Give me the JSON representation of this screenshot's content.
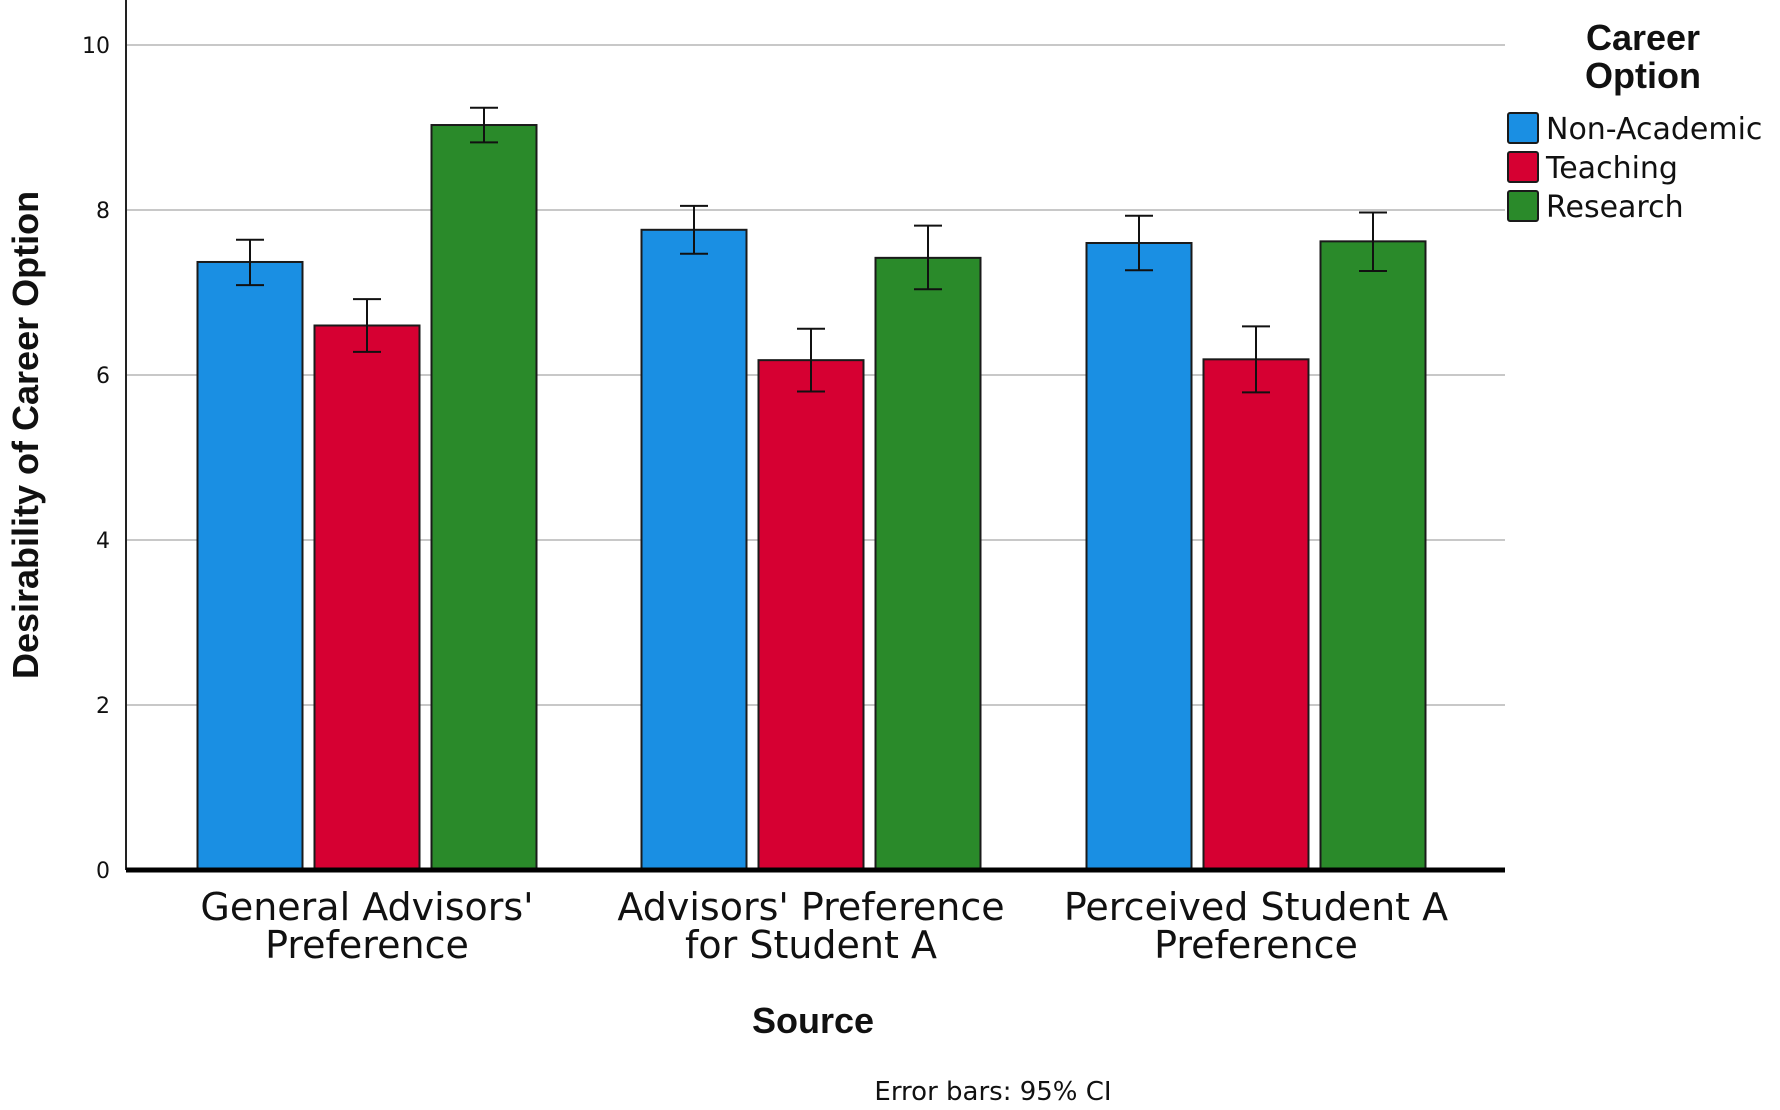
{
  "chart_data": {
    "type": "bar",
    "categories": [
      [
        "General Advisors'",
        "Preference"
      ],
      [
        "Advisors' Preference",
        "for Student A"
      ],
      [
        "Perceived Student A",
        "Preference"
      ]
    ],
    "series": [
      {
        "name": "Non-Academic",
        "color": "#1a8fe3",
        "values": [
          7.37,
          7.76,
          7.6
        ],
        "ci_low": [
          7.09,
          7.47,
          7.27
        ],
        "ci_high": [
          7.64,
          8.05,
          7.93
        ]
      },
      {
        "name": "Teaching",
        "color": "#d60032",
        "values": [
          6.6,
          6.18,
          6.19
        ],
        "ci_low": [
          6.28,
          5.8,
          5.79
        ],
        "ci_high": [
          6.92,
          6.56,
          6.59
        ]
      },
      {
        "name": "Research",
        "color": "#2a8a2a",
        "values": [
          9.03,
          7.42,
          7.62
        ],
        "ci_low": [
          8.82,
          7.04,
          7.26
        ],
        "ci_high": [
          9.24,
          7.81,
          7.97
        ]
      }
    ],
    "xlabel": "Source",
    "ylabel": "Desirability of Career Option",
    "ylim": [
      0,
      10.5
    ],
    "yticks": [
      0,
      2,
      4,
      6,
      8,
      10
    ],
    "grid": true,
    "legend": {
      "title": [
        "Career",
        "Option"
      ],
      "position": "top-right"
    },
    "footnote": "Error bars: 95% CI"
  }
}
